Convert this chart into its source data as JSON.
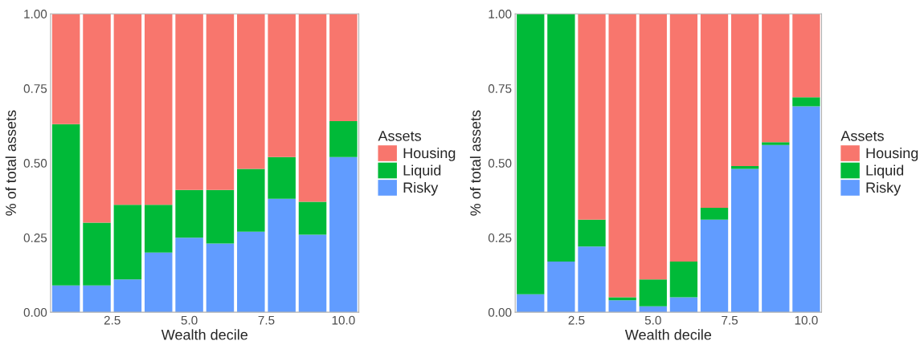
{
  "chart_data": [
    {
      "type": "bar",
      "stacked": true,
      "xlabel": "Wealth decile",
      "ylabel": "% of total assets",
      "legend_title": "Assets",
      "legend": "right",
      "x": [
        1,
        2,
        3,
        4,
        5,
        6,
        7,
        8,
        9,
        10
      ],
      "series": [
        {
          "name": "Risky",
          "color": "#619cff",
          "values": [
            0.09,
            0.09,
            0.11,
            0.2,
            0.25,
            0.23,
            0.27,
            0.38,
            0.26,
            0.52
          ]
        },
        {
          "name": "Liquid",
          "color": "#00ba38",
          "values": [
            0.54,
            0.21,
            0.25,
            0.16,
            0.16,
            0.18,
            0.21,
            0.14,
            0.11,
            0.12
          ]
        },
        {
          "name": "Housing",
          "color": "#f8766d",
          "values": [
            0.37,
            0.7,
            0.64,
            0.64,
            0.59,
            0.59,
            0.52,
            0.48,
            0.63,
            0.36
          ]
        }
      ],
      "xlim": [
        0.5,
        10.5
      ],
      "xticks": [
        {
          "value": 2.5,
          "label": "2.5"
        },
        {
          "value": 5,
          "label": "5.0"
        },
        {
          "value": 7.5,
          "label": "7.5"
        },
        {
          "value": 10,
          "label": "10.0"
        }
      ],
      "ylim": [
        0,
        1
      ],
      "yticks": [
        {
          "value": 0,
          "label": "0.00"
        },
        {
          "value": 0.25,
          "label": "0.25"
        },
        {
          "value": 0.5,
          "label": "0.50"
        },
        {
          "value": 0.75,
          "label": "0.75"
        },
        {
          "value": 1,
          "label": "1.00"
        }
      ]
    },
    {
      "type": "bar",
      "stacked": true,
      "xlabel": "Wealth decile",
      "ylabel": "% of total assets",
      "legend_title": "Assets",
      "legend": "right",
      "x": [
        1,
        2,
        3,
        4,
        5,
        6,
        7,
        8,
        9,
        10
      ],
      "series": [
        {
          "name": "Risky",
          "color": "#619cff",
          "values": [
            0.06,
            0.17,
            0.22,
            0.04,
            0.02,
            0.05,
            0.31,
            0.48,
            0.56,
            0.69
          ]
        },
        {
          "name": "Liquid",
          "color": "#00ba38",
          "values": [
            0.94,
            0.83,
            0.09,
            0.01,
            0.09,
            0.12,
            0.04,
            0.01,
            0.01,
            0.03
          ]
        },
        {
          "name": "Housing",
          "color": "#f8766d",
          "values": [
            0,
            0,
            0.69,
            0.95,
            0.89,
            0.83,
            0.65,
            0.51,
            0.43,
            0.28
          ]
        }
      ],
      "xlim": [
        0.5,
        10.5
      ],
      "xticks": [
        {
          "value": 2.5,
          "label": "2.5"
        },
        {
          "value": 5,
          "label": "5.0"
        },
        {
          "value": 7.5,
          "label": "7.5"
        },
        {
          "value": 10,
          "label": "10.0"
        }
      ],
      "ylim": [
        0,
        1
      ],
      "yticks": [
        {
          "value": 0,
          "label": "0.00"
        },
        {
          "value": 0.25,
          "label": "0.25"
        },
        {
          "value": 0.5,
          "label": "0.50"
        },
        {
          "value": 0.75,
          "label": "0.75"
        },
        {
          "value": 1,
          "label": "1.00"
        }
      ]
    }
  ]
}
